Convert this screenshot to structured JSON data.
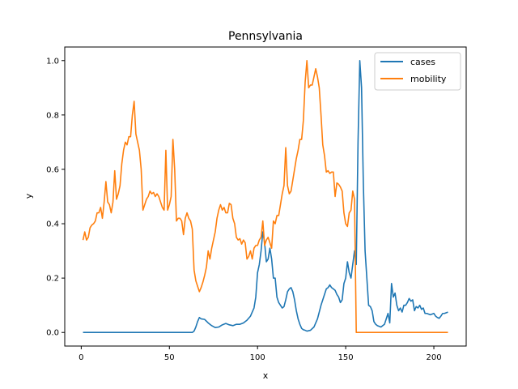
{
  "chart_data": {
    "type": "line",
    "title": "Pennsylvania",
    "xlabel": "x",
    "ylabel": "y",
    "xlim": [
      -9.35,
      218.35
    ],
    "ylim": [
      -0.05,
      1.05
    ],
    "xticks": [
      0,
      50,
      100,
      150,
      200
    ],
    "yticks": [
      0.0,
      0.2,
      0.4,
      0.6,
      0.8,
      1.0
    ],
    "grid": false,
    "legend_placement": "top-right",
    "series": [
      {
        "name": "cases",
        "color": "#1f77b4",
        "points": [
          [
            1,
            0
          ],
          [
            10,
            0
          ],
          [
            20,
            0
          ],
          [
            30,
            0
          ],
          [
            40,
            0
          ],
          [
            50,
            0
          ],
          [
            60,
            0
          ],
          [
            63,
            0
          ],
          [
            64,
            0.005
          ],
          [
            65,
            0.02
          ],
          [
            66,
            0.04
          ],
          [
            67,
            0.055
          ],
          [
            68,
            0.05
          ],
          [
            70,
            0.048
          ],
          [
            72,
            0.035
          ],
          [
            74,
            0.025
          ],
          [
            76,
            0.018
          ],
          [
            78,
            0.02
          ],
          [
            80,
            0.028
          ],
          [
            82,
            0.033
          ],
          [
            84,
            0.028
          ],
          [
            86,
            0.025
          ],
          [
            88,
            0.03
          ],
          [
            90,
            0.03
          ],
          [
            92,
            0.035
          ],
          [
            94,
            0.045
          ],
          [
            96,
            0.06
          ],
          [
            98,
            0.09
          ],
          [
            99,
            0.13
          ],
          [
            100,
            0.22
          ],
          [
            101,
            0.25
          ],
          [
            102,
            0.3
          ],
          [
            103,
            0.37
          ],
          [
            104,
            0.33
          ],
          [
            105,
            0.26
          ],
          [
            106,
            0.27
          ],
          [
            107,
            0.31
          ],
          [
            108,
            0.27
          ],
          [
            109,
            0.2
          ],
          [
            110,
            0.2
          ],
          [
            111,
            0.13
          ],
          [
            112,
            0.11
          ],
          [
            113,
            0.1
          ],
          [
            114,
            0.09
          ],
          [
            115,
            0.095
          ],
          [
            116,
            0.12
          ],
          [
            117,
            0.15
          ],
          [
            118,
            0.16
          ],
          [
            119,
            0.165
          ],
          [
            120,
            0.15
          ],
          [
            121,
            0.12
          ],
          [
            122,
            0.08
          ],
          [
            123,
            0.05
          ],
          [
            124,
            0.03
          ],
          [
            125,
            0.015
          ],
          [
            126,
            0.01
          ],
          [
            127,
            0.008
          ],
          [
            128,
            0.005
          ],
          [
            130,
            0.008
          ],
          [
            132,
            0.02
          ],
          [
            134,
            0.05
          ],
          [
            135,
            0.075
          ],
          [
            136,
            0.1
          ],
          [
            137,
            0.12
          ],
          [
            138,
            0.14
          ],
          [
            139,
            0.16
          ],
          [
            140,
            0.165
          ],
          [
            141,
            0.175
          ],
          [
            142,
            0.165
          ],
          [
            143,
            0.16
          ],
          [
            144,
            0.155
          ],
          [
            145,
            0.14
          ],
          [
            146,
            0.13
          ],
          [
            147,
            0.11
          ],
          [
            148,
            0.12
          ],
          [
            149,
            0.18
          ],
          [
            150,
            0.2
          ],
          [
            151,
            0.26
          ],
          [
            152,
            0.22
          ],
          [
            153,
            0.2
          ],
          [
            154,
            0.25
          ],
          [
            155,
            0.3
          ],
          [
            156,
            0.25
          ],
          [
            157,
            0.7
          ],
          [
            158,
            1.0
          ],
          [
            159,
            0.9
          ],
          [
            160,
            0.55
          ],
          [
            161,
            0.3
          ],
          [
            162,
            0.2
          ],
          [
            163,
            0.1
          ],
          [
            164,
            0.095
          ],
          [
            165,
            0.08
          ],
          [
            166,
            0.04
          ],
          [
            167,
            0.03
          ],
          [
            168,
            0.025
          ],
          [
            170,
            0.02
          ],
          [
            172,
            0.03
          ],
          [
            173,
            0.05
          ],
          [
            174,
            0.07
          ],
          [
            175,
            0.035
          ],
          [
            176,
            0.18
          ],
          [
            177,
            0.13
          ],
          [
            178,
            0.145
          ],
          [
            179,
            0.1
          ],
          [
            180,
            0.08
          ],
          [
            181,
            0.09
          ],
          [
            182,
            0.075
          ],
          [
            183,
            0.1
          ],
          [
            184,
            0.1
          ],
          [
            185,
            0.11
          ],
          [
            186,
            0.125
          ],
          [
            187,
            0.115
          ],
          [
            188,
            0.12
          ],
          [
            189,
            0.08
          ],
          [
            190,
            0.095
          ],
          [
            191,
            0.09
          ],
          [
            192,
            0.1
          ],
          [
            193,
            0.085
          ],
          [
            194,
            0.09
          ],
          [
            195,
            0.07
          ],
          [
            196,
            0.07
          ],
          [
            198,
            0.065
          ],
          [
            200,
            0.07
          ],
          [
            201,
            0.06
          ],
          [
            202,
            0.055
          ],
          [
            203,
            0.052
          ],
          [
            204,
            0.06
          ],
          [
            205,
            0.07
          ],
          [
            206,
            0.07
          ],
          [
            208,
            0.075
          ]
        ]
      },
      {
        "name": "mobility",
        "color": "#ff7f0e",
        "points": [
          [
            1,
            0.34
          ],
          [
            2,
            0.37
          ],
          [
            3,
            0.34
          ],
          [
            4,
            0.35
          ],
          [
            5,
            0.385
          ],
          [
            6,
            0.395
          ],
          [
            7,
            0.4
          ],
          [
            8,
            0.41
          ],
          [
            9,
            0.44
          ],
          [
            10,
            0.44
          ],
          [
            11,
            0.46
          ],
          [
            12,
            0.42
          ],
          [
            13,
            0.48
          ],
          [
            14,
            0.555
          ],
          [
            15,
            0.48
          ],
          [
            16,
            0.47
          ],
          [
            17,
            0.44
          ],
          [
            18,
            0.48
          ],
          [
            19,
            0.595
          ],
          [
            20,
            0.49
          ],
          [
            21,
            0.51
          ],
          [
            22,
            0.54
          ],
          [
            23,
            0.62
          ],
          [
            24,
            0.67
          ],
          [
            25,
            0.7
          ],
          [
            26,
            0.69
          ],
          [
            27,
            0.72
          ],
          [
            28,
            0.72
          ],
          [
            29,
            0.8
          ],
          [
            30,
            0.85
          ],
          [
            31,
            0.73
          ],
          [
            32,
            0.7
          ],
          [
            33,
            0.67
          ],
          [
            34,
            0.6
          ],
          [
            35,
            0.45
          ],
          [
            36,
            0.47
          ],
          [
            37,
            0.49
          ],
          [
            38,
            0.5
          ],
          [
            39,
            0.52
          ],
          [
            40,
            0.51
          ],
          [
            41,
            0.515
          ],
          [
            42,
            0.5
          ],
          [
            43,
            0.51
          ],
          [
            44,
            0.5
          ],
          [
            45,
            0.48
          ],
          [
            46,
            0.46
          ],
          [
            47,
            0.45
          ],
          [
            48,
            0.67
          ],
          [
            49,
            0.45
          ],
          [
            50,
            0.47
          ],
          [
            51,
            0.5
          ],
          [
            52,
            0.71
          ],
          [
            53,
            0.6
          ],
          [
            54,
            0.41
          ],
          [
            55,
            0.42
          ],
          [
            56,
            0.42
          ],
          [
            57,
            0.41
          ],
          [
            58,
            0.36
          ],
          [
            59,
            0.42
          ],
          [
            60,
            0.44
          ],
          [
            61,
            0.42
          ],
          [
            62,
            0.41
          ],
          [
            63,
            0.38
          ],
          [
            64,
            0.23
          ],
          [
            65,
            0.19
          ],
          [
            66,
            0.17
          ],
          [
            67,
            0.15
          ],
          [
            68,
            0.165
          ],
          [
            69,
            0.185
          ],
          [
            70,
            0.21
          ],
          [
            71,
            0.24
          ],
          [
            72,
            0.3
          ],
          [
            73,
            0.27
          ],
          [
            74,
            0.31
          ],
          [
            75,
            0.34
          ],
          [
            76,
            0.37
          ],
          [
            77,
            0.42
          ],
          [
            78,
            0.45
          ],
          [
            79,
            0.47
          ],
          [
            80,
            0.45
          ],
          [
            81,
            0.46
          ],
          [
            82,
            0.44
          ],
          [
            83,
            0.44
          ],
          [
            84,
            0.475
          ],
          [
            85,
            0.47
          ],
          [
            86,
            0.42
          ],
          [
            87,
            0.4
          ],
          [
            88,
            0.35
          ],
          [
            89,
            0.34
          ],
          [
            90,
            0.345
          ],
          [
            91,
            0.325
          ],
          [
            92,
            0.34
          ],
          [
            93,
            0.33
          ],
          [
            94,
            0.27
          ],
          [
            95,
            0.28
          ],
          [
            96,
            0.3
          ],
          [
            97,
            0.27
          ],
          [
            98,
            0.31
          ],
          [
            99,
            0.32
          ],
          [
            100,
            0.32
          ],
          [
            101,
            0.34
          ],
          [
            102,
            0.35
          ],
          [
            103,
            0.41
          ],
          [
            104,
            0.32
          ],
          [
            105,
            0.34
          ],
          [
            106,
            0.35
          ],
          [
            107,
            0.33
          ],
          [
            108,
            0.31
          ],
          [
            109,
            0.41
          ],
          [
            110,
            0.4
          ],
          [
            111,
            0.43
          ],
          [
            112,
            0.43
          ],
          [
            113,
            0.47
          ],
          [
            114,
            0.51
          ],
          [
            115,
            0.54
          ],
          [
            116,
            0.68
          ],
          [
            117,
            0.54
          ],
          [
            118,
            0.51
          ],
          [
            119,
            0.52
          ],
          [
            120,
            0.56
          ],
          [
            121,
            0.6
          ],
          [
            122,
            0.64
          ],
          [
            123,
            0.67
          ],
          [
            124,
            0.71
          ],
          [
            125,
            0.71
          ],
          [
            126,
            0.78
          ],
          [
            127,
            0.92
          ],
          [
            128,
            1.0
          ],
          [
            129,
            0.9
          ],
          [
            130,
            0.91
          ],
          [
            131,
            0.91
          ],
          [
            132,
            0.94
          ],
          [
            133,
            0.97
          ],
          [
            134,
            0.94
          ],
          [
            135,
            0.9
          ],
          [
            136,
            0.8
          ],
          [
            137,
            0.69
          ],
          [
            138,
            0.65
          ],
          [
            139,
            0.59
          ],
          [
            140,
            0.595
          ],
          [
            141,
            0.585
          ],
          [
            142,
            0.59
          ],
          [
            143,
            0.59
          ],
          [
            144,
            0.5
          ],
          [
            145,
            0.55
          ],
          [
            146,
            0.545
          ],
          [
            147,
            0.535
          ],
          [
            148,
            0.52
          ],
          [
            149,
            0.44
          ],
          [
            150,
            0.4
          ],
          [
            151,
            0.39
          ],
          [
            152,
            0.44
          ],
          [
            153,
            0.45
          ],
          [
            154,
            0.52
          ],
          [
            155,
            0.49
          ],
          [
            156,
            0.0
          ],
          [
            160,
            0
          ],
          [
            170,
            0
          ],
          [
            180,
            0
          ],
          [
            190,
            0
          ],
          [
            200,
            0
          ],
          [
            208,
            0
          ]
        ]
      }
    ]
  }
}
